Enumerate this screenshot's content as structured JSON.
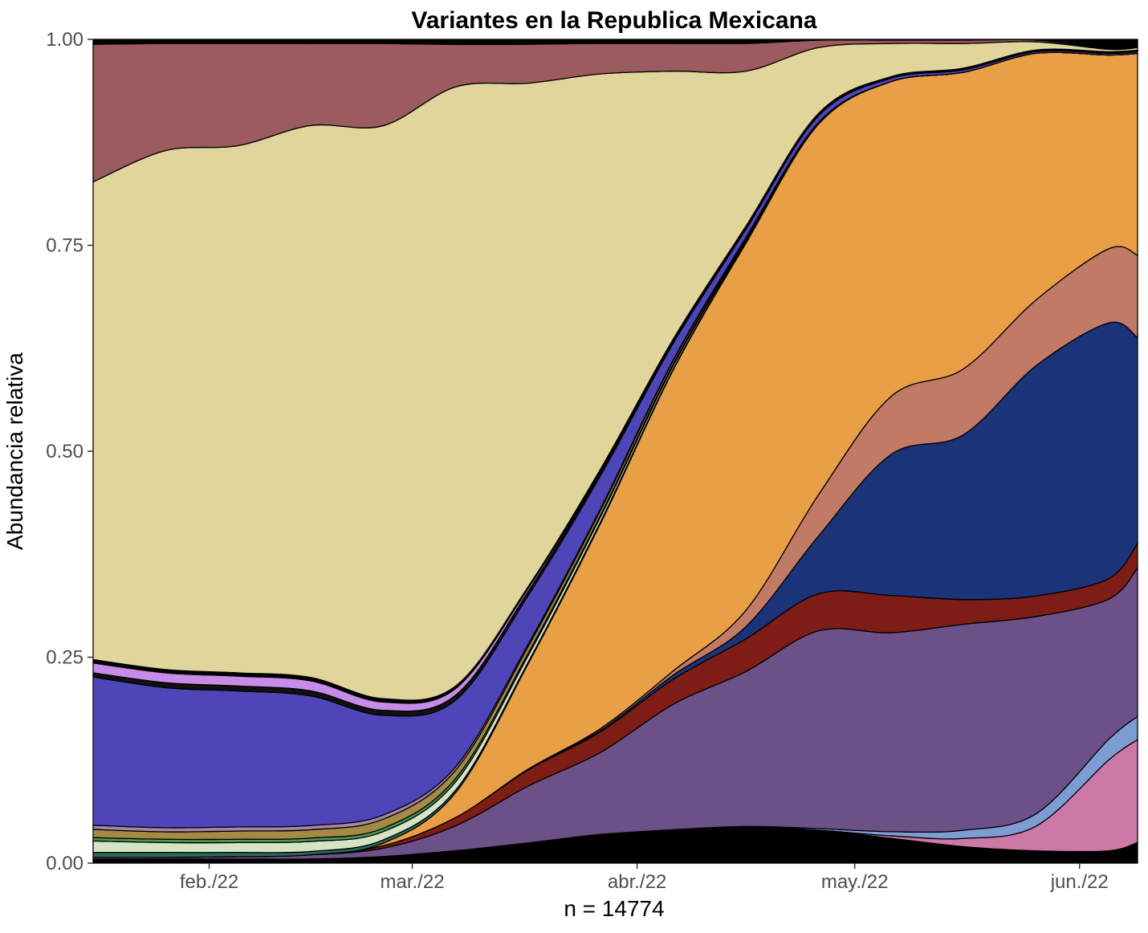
{
  "chart_data": {
    "type": "area",
    "stacked": true,
    "normalized": true,
    "title": "Variantes en la Republica Mexicana",
    "xlabel": "n = 14774",
    "ylabel": "Abundancia relativa",
    "ylim": [
      0,
      1
    ],
    "xlim": [
      0,
      144
    ],
    "yticks": [
      0,
      0.25,
      0.5,
      0.75,
      1
    ],
    "ytick_labels": [
      "0.00",
      "0.25",
      "0.50",
      "0.75",
      "1.00"
    ],
    "xticks": [
      16,
      44,
      75,
      105,
      136
    ],
    "xtick_labels": [
      "feb./22",
      "mar./22",
      "abr./22",
      "may./22",
      "jun./22"
    ],
    "x": [
      0,
      10,
      20,
      30,
      40,
      50,
      60,
      70,
      80,
      90,
      100,
      110,
      120,
      130,
      140,
      144
    ],
    "series": [
      {
        "name": "black",
        "color": "#000000",
        "values": [
          0.005,
          0.005,
          0.005,
          0.005,
          0.008,
          0.015,
          0.025,
          0.035,
          0.04,
          0.045,
          0.04,
          0.03,
          0.02,
          0.015,
          0.015,
          0.025
        ]
      },
      {
        "name": "pink",
        "color": "#cc79a7",
        "values": [
          0,
          0,
          0,
          0,
          0,
          0,
          0,
          0,
          0,
          0,
          0,
          0.003,
          0.01,
          0.03,
          0.11,
          0.125
        ]
      },
      {
        "name": "light-blue",
        "color": "#7e9cd4",
        "values": [
          0,
          0,
          0,
          0,
          0,
          0,
          0,
          0,
          0,
          0,
          0.002,
          0.005,
          0.01,
          0.015,
          0.025,
          0.028
        ]
      },
      {
        "name": "purple",
        "color": "#6c5088",
        "values": [
          0.002,
          0.002,
          0.003,
          0.005,
          0.01,
          0.03,
          0.07,
          0.1,
          0.15,
          0.19,
          0.24,
          0.24,
          0.25,
          0.24,
          0.17,
          0.18
        ]
      },
      {
        "name": "dark-red",
        "color": "#7e1d15",
        "values": [
          0,
          0,
          0,
          0,
          0.003,
          0.01,
          0.02,
          0.025,
          0.03,
          0.04,
          0.045,
          0.045,
          0.03,
          0.025,
          0.025,
          0.03
        ]
      },
      {
        "name": "navy",
        "color": "#1b3378",
        "values": [
          0,
          0,
          0,
          0,
          0,
          0,
          0.001,
          0.002,
          0.005,
          0.015,
          0.07,
          0.17,
          0.2,
          0.28,
          0.31,
          0.25
        ]
      },
      {
        "name": "salmon",
        "color": "#c07a66",
        "values": [
          0,
          0,
          0,
          0,
          0,
          0,
          0,
          0.002,
          0.005,
          0.02,
          0.05,
          0.07,
          0.08,
          0.08,
          0.09,
          0.1
        ]
      },
      {
        "name": "orange",
        "color": "#e99f46",
        "values": [
          0,
          0,
          0,
          0,
          0.003,
          0.03,
          0.13,
          0.25,
          0.36,
          0.45,
          0.45,
          0.38,
          0.36,
          0.3,
          0.235,
          0.245
        ]
      },
      {
        "name": "teal",
        "color": "#2d6a55",
        "values": [
          0.006,
          0.006,
          0.005,
          0.004,
          0.004,
          0.003,
          0.002,
          0.002,
          0.001,
          0.001,
          0,
          0,
          0,
          0,
          0,
          0
        ]
      },
      {
        "name": "pale-green",
        "color": "#d4e4c4",
        "values": [
          0.014,
          0.012,
          0.012,
          0.012,
          0.01,
          0.01,
          0.008,
          0.006,
          0.004,
          0.002,
          0.001,
          0,
          0,
          0,
          0,
          0
        ]
      },
      {
        "name": "green",
        "color": "#4a9a55",
        "values": [
          0.004,
          0.004,
          0.004,
          0.004,
          0.004,
          0.004,
          0.003,
          0.002,
          0.002,
          0.001,
          0,
          0,
          0,
          0,
          0,
          0
        ]
      },
      {
        "name": "olive",
        "color": "#a48a46",
        "values": [
          0.01,
          0.009,
          0.01,
          0.01,
          0.011,
          0.01,
          0.008,
          0.006,
          0.004,
          0.002,
          0.001,
          0,
          0,
          0,
          0,
          0
        ]
      },
      {
        "name": "mauve",
        "color": "#a686a6",
        "values": [
          0.005,
          0.005,
          0.005,
          0.005,
          0.005,
          0.004,
          0.003,
          0.002,
          0.001,
          0.001,
          0,
          0,
          0,
          0,
          0,
          0
        ]
      },
      {
        "name": "blue-violet",
        "color": "#4e45b8",
        "values": [
          0.18,
          0.17,
          0.165,
          0.155,
          0.12,
          0.08,
          0.06,
          0.04,
          0.02,
          0.01,
          0.008,
          0.004,
          0.003,
          0.002,
          0.002,
          0.002
        ]
      },
      {
        "name": "dark-band",
        "color": "#111111",
        "values": [
          0.005,
          0.006,
          0.006,
          0.006,
          0.006,
          0.006,
          0.005,
          0.004,
          0.003,
          0.002,
          0.002,
          0.001,
          0.001,
          0.001,
          0.001,
          0.001
        ]
      },
      {
        "name": "lilac",
        "color": "#c78be8",
        "values": [
          0.012,
          0.012,
          0.012,
          0.012,
          0.01,
          0.008,
          0.004,
          0.002,
          0.001,
          0.001,
          0,
          0,
          0,
          0,
          0,
          0
        ]
      },
      {
        "name": "thin-black",
        "color": "#000000",
        "values": [
          0.004,
          0.004,
          0.004,
          0.004,
          0.004,
          0.003,
          0.002,
          0.002,
          0.001,
          0.001,
          0.001,
          0.001,
          0.001,
          0.001,
          0.001,
          0.001
        ]
      },
      {
        "name": "khaki",
        "color": "#e0d59b",
        "values": [
          0.58,
          0.63,
          0.64,
          0.66,
          0.69,
          0.72,
          0.62,
          0.48,
          0.32,
          0.19,
          0.08,
          0.04,
          0.03,
          0.01,
          0.003,
          0.003
        ]
      },
      {
        "name": "rosewood",
        "color": "#9c5b5e",
        "values": [
          0.167,
          0.13,
          0.124,
          0.098,
          0.099,
          0.051,
          0.048,
          0.037,
          0.033,
          0.034,
          0.009,
          0.004,
          0.004,
          0.002,
          0.001,
          0.001
        ]
      },
      {
        "name": "top-black",
        "color": "#000000",
        "values": [
          0.006,
          0.005,
          0.005,
          0.005,
          0.005,
          0.006,
          0.006,
          0.005,
          0.005,
          0.005,
          0.001,
          0.001,
          0.001,
          0.001,
          0.011,
          0.009
        ]
      }
    ]
  }
}
